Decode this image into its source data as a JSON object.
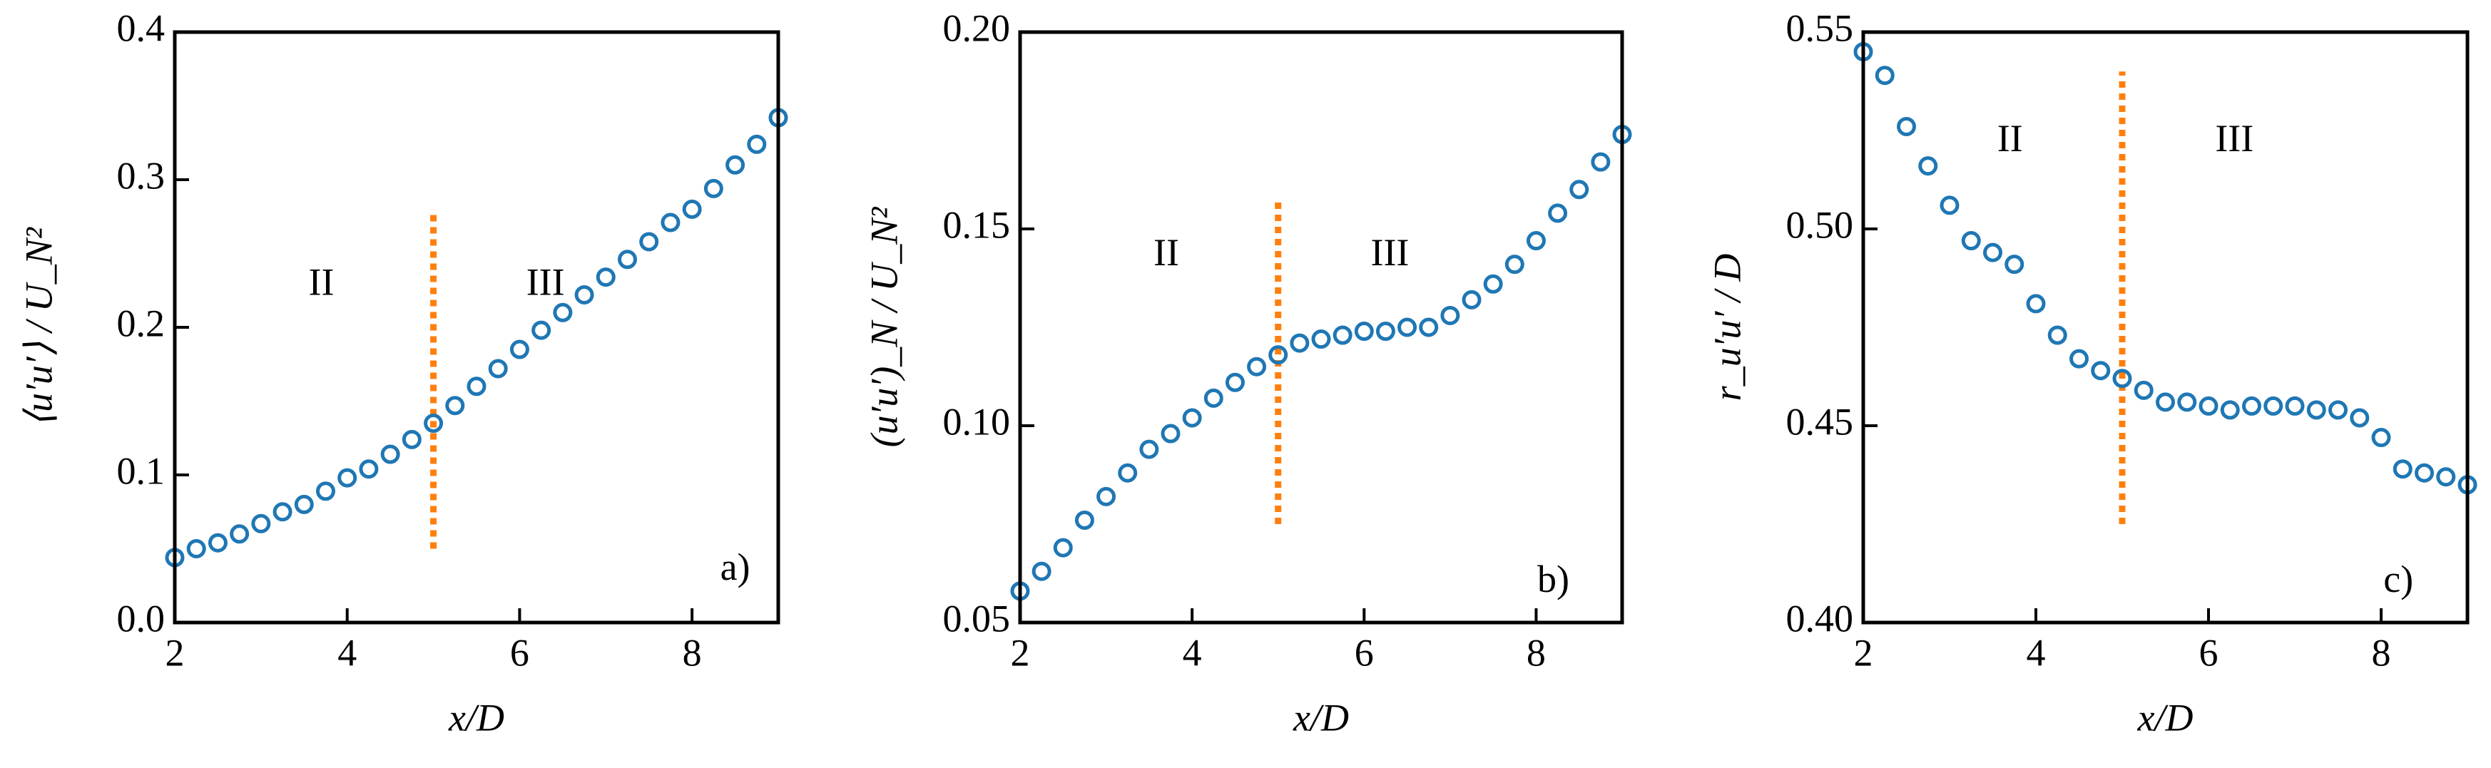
{
  "chart_data": [
    {
      "type": "scatter",
      "xlabel": "x/D",
      "ylabel": "⟨u′u′⟩ / U_N²",
      "x": [
        2,
        2.25,
        2.5,
        2.75,
        3,
        3.25,
        3.5,
        3.75,
        4,
        4.25,
        4.5,
        4.75,
        5,
        5.25,
        5.5,
        5.75,
        6,
        6.25,
        6.5,
        6.75,
        7,
        7.25,
        7.5,
        7.75,
        8,
        8.25,
        8.5,
        8.75,
        9
      ],
      "values": [
        0.044,
        0.05,
        0.054,
        0.06,
        0.067,
        0.075,
        0.08,
        0.089,
        0.098,
        0.104,
        0.114,
        0.124,
        0.135,
        0.147,
        0.16,
        0.172,
        0.185,
        0.198,
        0.21,
        0.222,
        0.234,
        0.246,
        0.258,
        0.271,
        0.28,
        0.294,
        0.31,
        0.324,
        0.342
      ],
      "color": "#1f77b4",
      "xlim": [
        2,
        9
      ],
      "xticks": [
        2,
        4,
        6,
        8
      ],
      "ylim": [
        0,
        0.4
      ],
      "yticks": [
        {
          "value": 0,
          "label": "0.0"
        },
        0.1,
        0.2,
        0.3,
        0.4
      ],
      "vline": {
        "x": 5,
        "ymin": 0.05,
        "ymax": 0.28,
        "color": "#ff7f0e"
      },
      "annotations": [
        {
          "text": "II",
          "x": 3.7,
          "y": 0.228
        },
        {
          "text": "III",
          "x": 6.3,
          "y": 0.228
        },
        {
          "text": "a)",
          "x": 8.5,
          "y": 0.035
        }
      ]
    },
    {
      "type": "scatter",
      "xlabel": "x/D",
      "ylabel": "(u′u′)_N / U_N²",
      "x": [
        2,
        2.25,
        2.5,
        2.75,
        3,
        3.25,
        3.5,
        3.75,
        4,
        4.25,
        4.5,
        4.75,
        5,
        5.25,
        5.5,
        5.75,
        6,
        6.25,
        6.5,
        6.75,
        7,
        7.25,
        7.5,
        7.75,
        8,
        8.25,
        8.5,
        8.75,
        9
      ],
      "values": [
        0.058,
        0.063,
        0.069,
        0.076,
        0.082,
        0.088,
        0.094,
        0.098,
        0.102,
        0.107,
        0.111,
        0.115,
        0.118,
        0.121,
        0.122,
        0.123,
        0.124,
        0.124,
        0.125,
        0.125,
        0.128,
        0.132,
        0.136,
        0.141,
        0.147,
        0.154,
        0.16,
        0.167,
        0.174
      ],
      "color": "#1f77b4",
      "xlim": [
        2,
        9
      ],
      "xticks": [
        2,
        4,
        6,
        8
      ],
      "ylim": [
        0.05,
        0.2
      ],
      "yticks": [
        0.05,
        {
          "value": 0.1,
          "label": "0.10"
        },
        0.15,
        {
          "value": 0.2,
          "label": "0.20"
        }
      ],
      "vline": {
        "x": 5,
        "ymin": 0.075,
        "ymax": 0.158,
        "color": "#ff7f0e"
      },
      "annotations": [
        {
          "text": "II",
          "x": 3.7,
          "y": 0.143
        },
        {
          "text": "III",
          "x": 6.3,
          "y": 0.143
        },
        {
          "text": "b)",
          "x": 8.2,
          "y": 0.06
        }
      ]
    },
    {
      "type": "scatter",
      "xlabel": "x/D",
      "ylabel": "r_u′u′ / D",
      "x": [
        2,
        2.25,
        2.5,
        2.75,
        3,
        3.25,
        3.5,
        3.75,
        4,
        4.25,
        4.5,
        4.75,
        5,
        5.25,
        5.5,
        5.75,
        6,
        6.25,
        6.5,
        6.75,
        7,
        7.25,
        7.5,
        7.75,
        8,
        8.25,
        8.5,
        8.75,
        9
      ],
      "values": [
        0.545,
        0.539,
        0.526,
        0.516,
        0.506,
        0.497,
        0.494,
        0.491,
        0.481,
        0.473,
        0.467,
        0.464,
        0.462,
        0.459,
        0.456,
        0.456,
        0.455,
        0.454,
        0.455,
        0.455,
        0.455,
        0.454,
        0.454,
        0.452,
        0.447,
        0.439,
        0.438,
        0.437,
        0.435
      ],
      "color": "#1f77b4",
      "xlim": [
        2,
        9
      ],
      "xticks": [
        2,
        4,
        6,
        8
      ],
      "ylim": [
        0.4,
        0.55
      ],
      "yticks": [
        {
          "value": 0.4,
          "label": "0.40"
        },
        0.45,
        {
          "value": 0.5,
          "label": "0.50"
        },
        0.55
      ],
      "vline": {
        "x": 5,
        "ymin": 0.425,
        "ymax": 0.54,
        "color": "#ff7f0e"
      },
      "annotations": [
        {
          "text": "II",
          "x": 3.7,
          "y": 0.522
        },
        {
          "text": "III",
          "x": 6.3,
          "y": 0.522
        },
        {
          "text": "c)",
          "x": 8.2,
          "y": 0.41
        }
      ]
    }
  ]
}
